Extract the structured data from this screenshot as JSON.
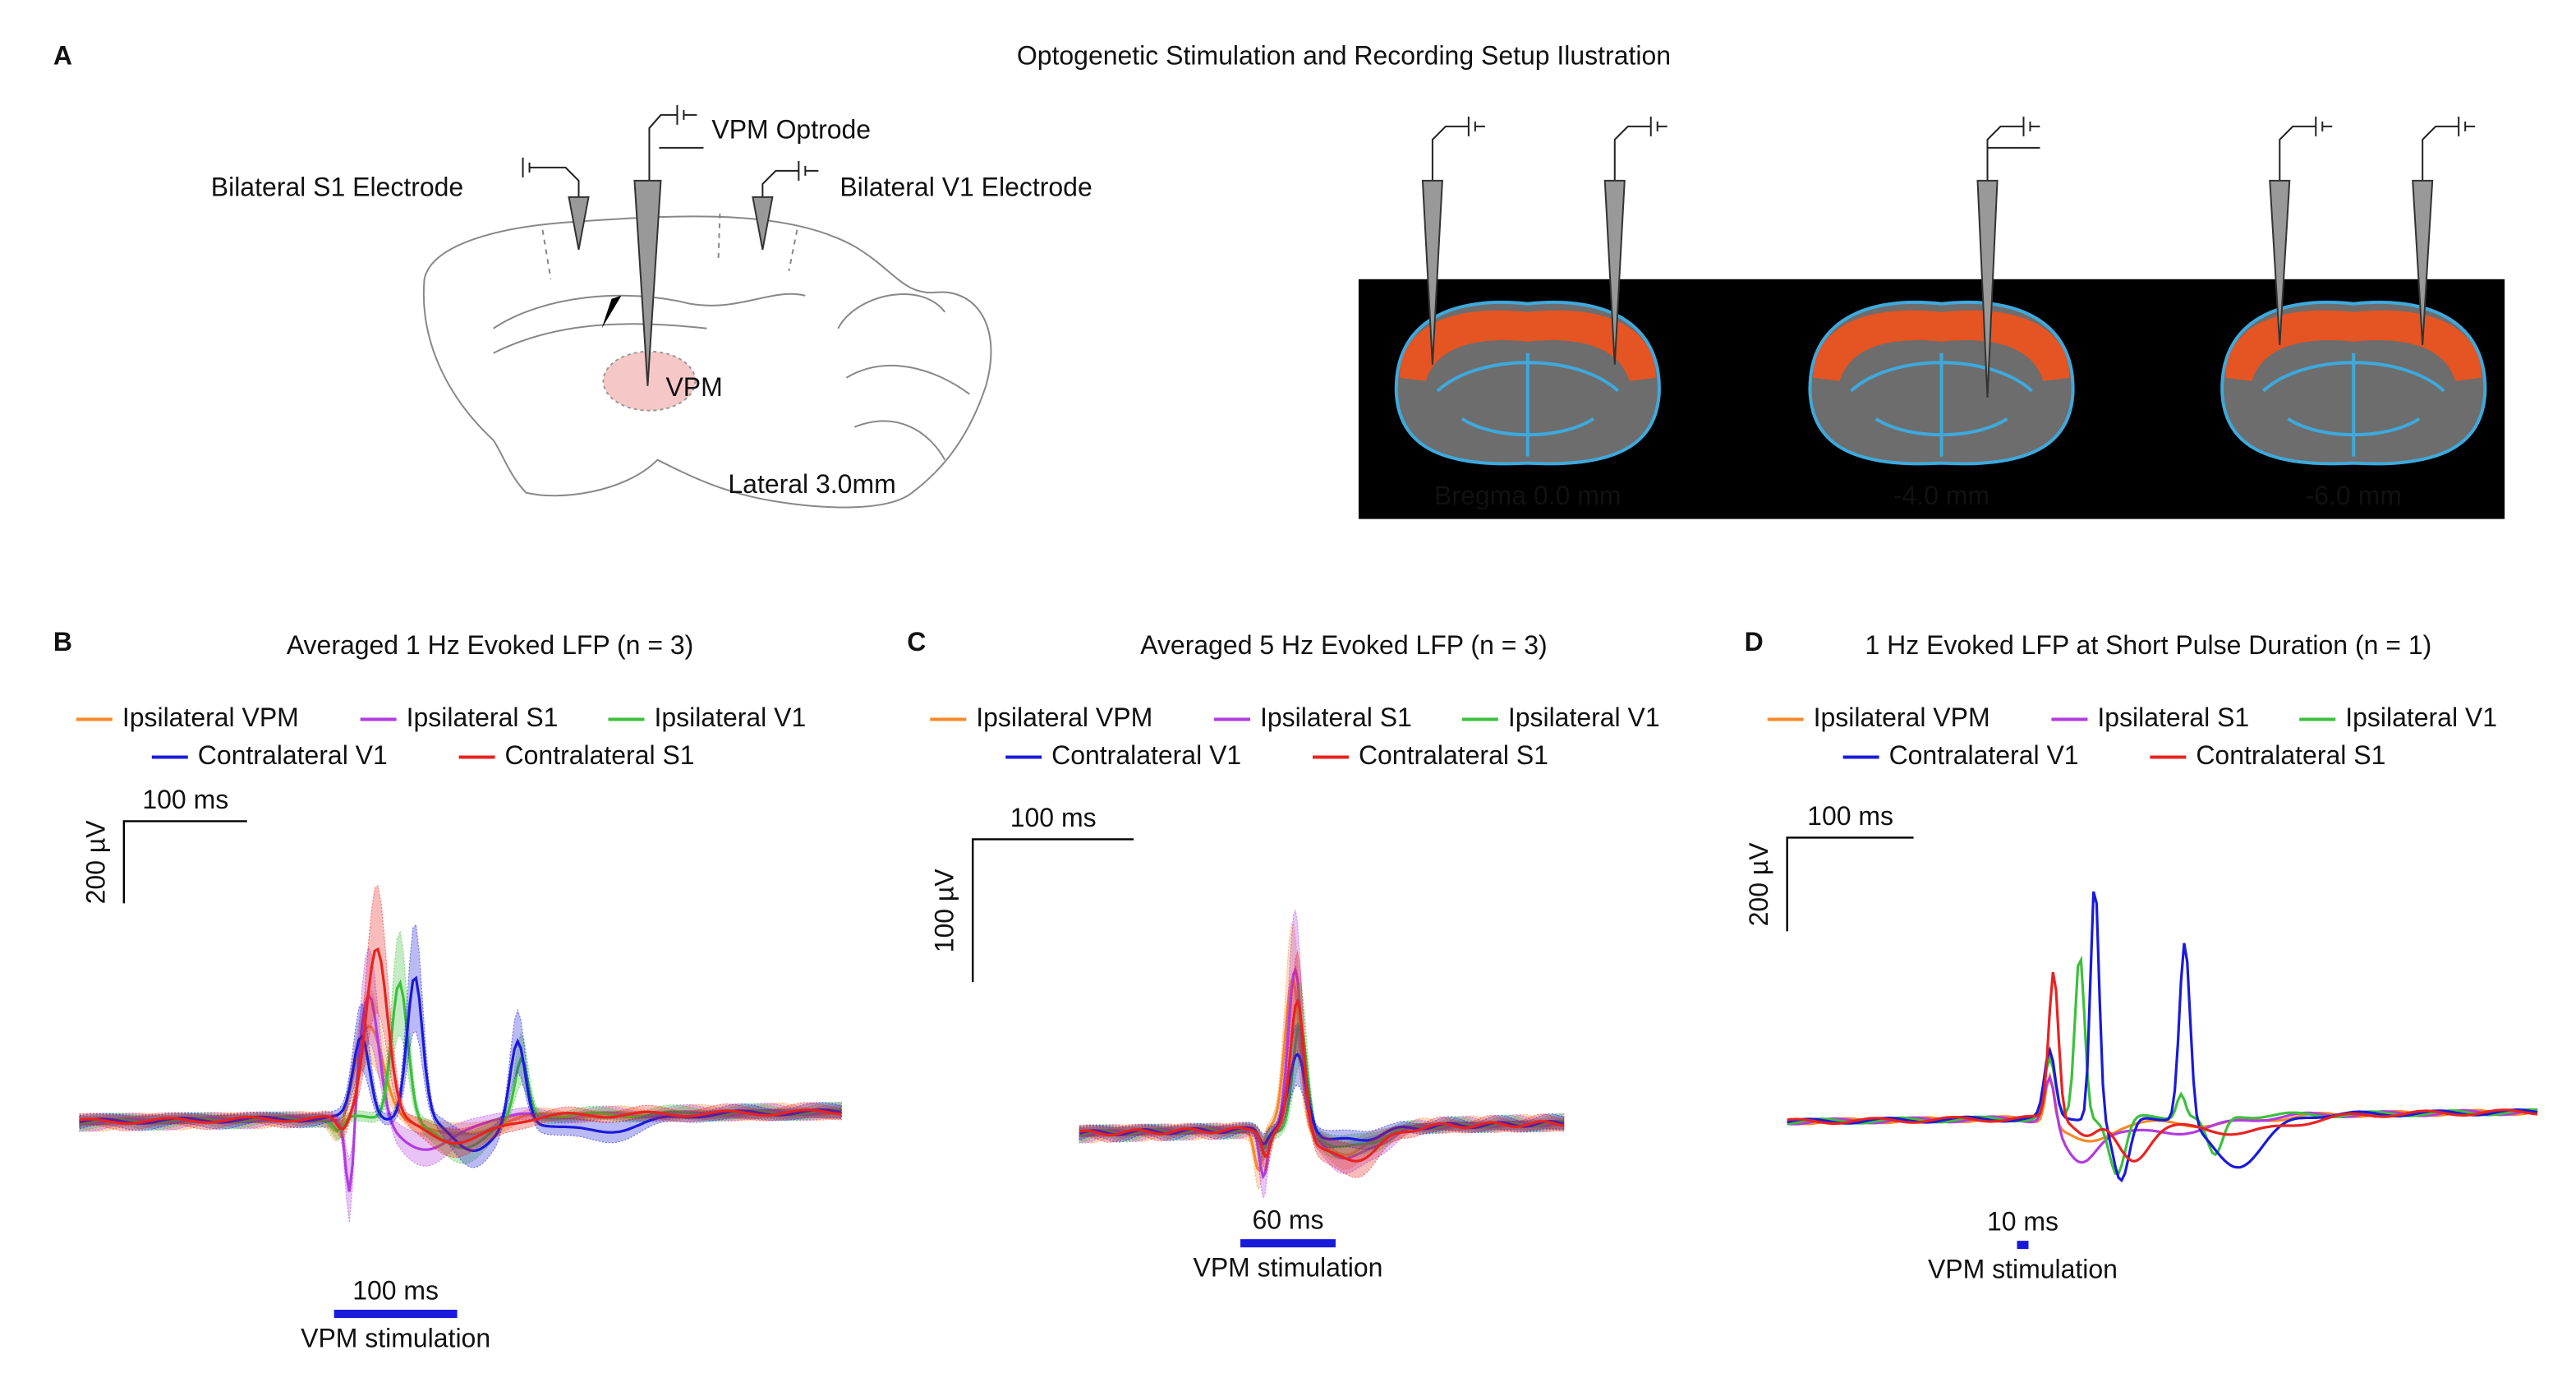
{
  "panel_a": {
    "label": "A",
    "title": "Optogenetic Stimulation and Recording Setup Ilustration",
    "sagittal_labels": {
      "s1": "Bilateral S1 Electrode",
      "optrode": "VPM Optrode",
      "v1": "Bilateral V1 Electrode",
      "vpm": "VPM",
      "lateral": "Lateral 3.0mm"
    },
    "coronal_labels": [
      "Bregma 0.0 mm",
      "-4.0 mm",
      "-6.0 mm"
    ]
  },
  "panels": [
    {
      "label": "B",
      "title": "Averaged 1 Hz Evoked LFP (n = 3)",
      "legend": [
        {
          "name": "Ipsilateral VPM",
          "color": "#f7892a"
        },
        {
          "name": "Ipsilateral S1",
          "color": "#b23be0"
        },
        {
          "name": "Ipsilateral V1",
          "color": "#3cc03c"
        },
        {
          "name": "Contralateral V1",
          "color": "#1a1adb"
        },
        {
          "name": "Contralateral S1",
          "color": "#e8231f"
        }
      ],
      "scale_x": "100 ms",
      "scale_y": "200 µV",
      "stim_duration": "100 ms",
      "stim_label": "VPM stimulation"
    },
    {
      "label": "C",
      "title": "Averaged 5 Hz Evoked LFP (n = 3)",
      "legend": [
        {
          "name": "Ipsilateral VPM",
          "color": "#f7892a"
        },
        {
          "name": "Ipsilateral S1",
          "color": "#b23be0"
        },
        {
          "name": "Ipsilateral V1",
          "color": "#3cc03c"
        },
        {
          "name": "Contralateral V1",
          "color": "#1a1adb"
        },
        {
          "name": "Contralateral S1",
          "color": "#e8231f"
        }
      ],
      "scale_x": "100 ms",
      "scale_y": "100 µV",
      "stim_duration": "60 ms",
      "stim_label": "VPM stimulation"
    },
    {
      "label": "D",
      "title": "1 Hz Evoked LFP at Short Pulse Duration (n = 1)",
      "legend": [
        {
          "name": "Ipsilateral VPM",
          "color": "#f7892a"
        },
        {
          "name": "Ipsilateral S1",
          "color": "#b23be0"
        },
        {
          "name": "Ipsilateral V1",
          "color": "#3cc03c"
        },
        {
          "name": "Contralateral V1",
          "color": "#1a1adb"
        },
        {
          "name": "Contralateral S1",
          "color": "#e8231f"
        }
      ],
      "scale_x": "100 ms",
      "scale_y": "200 µV",
      "stim_duration": "10 ms",
      "stim_label": "VPM stimulation"
    }
  ]
}
